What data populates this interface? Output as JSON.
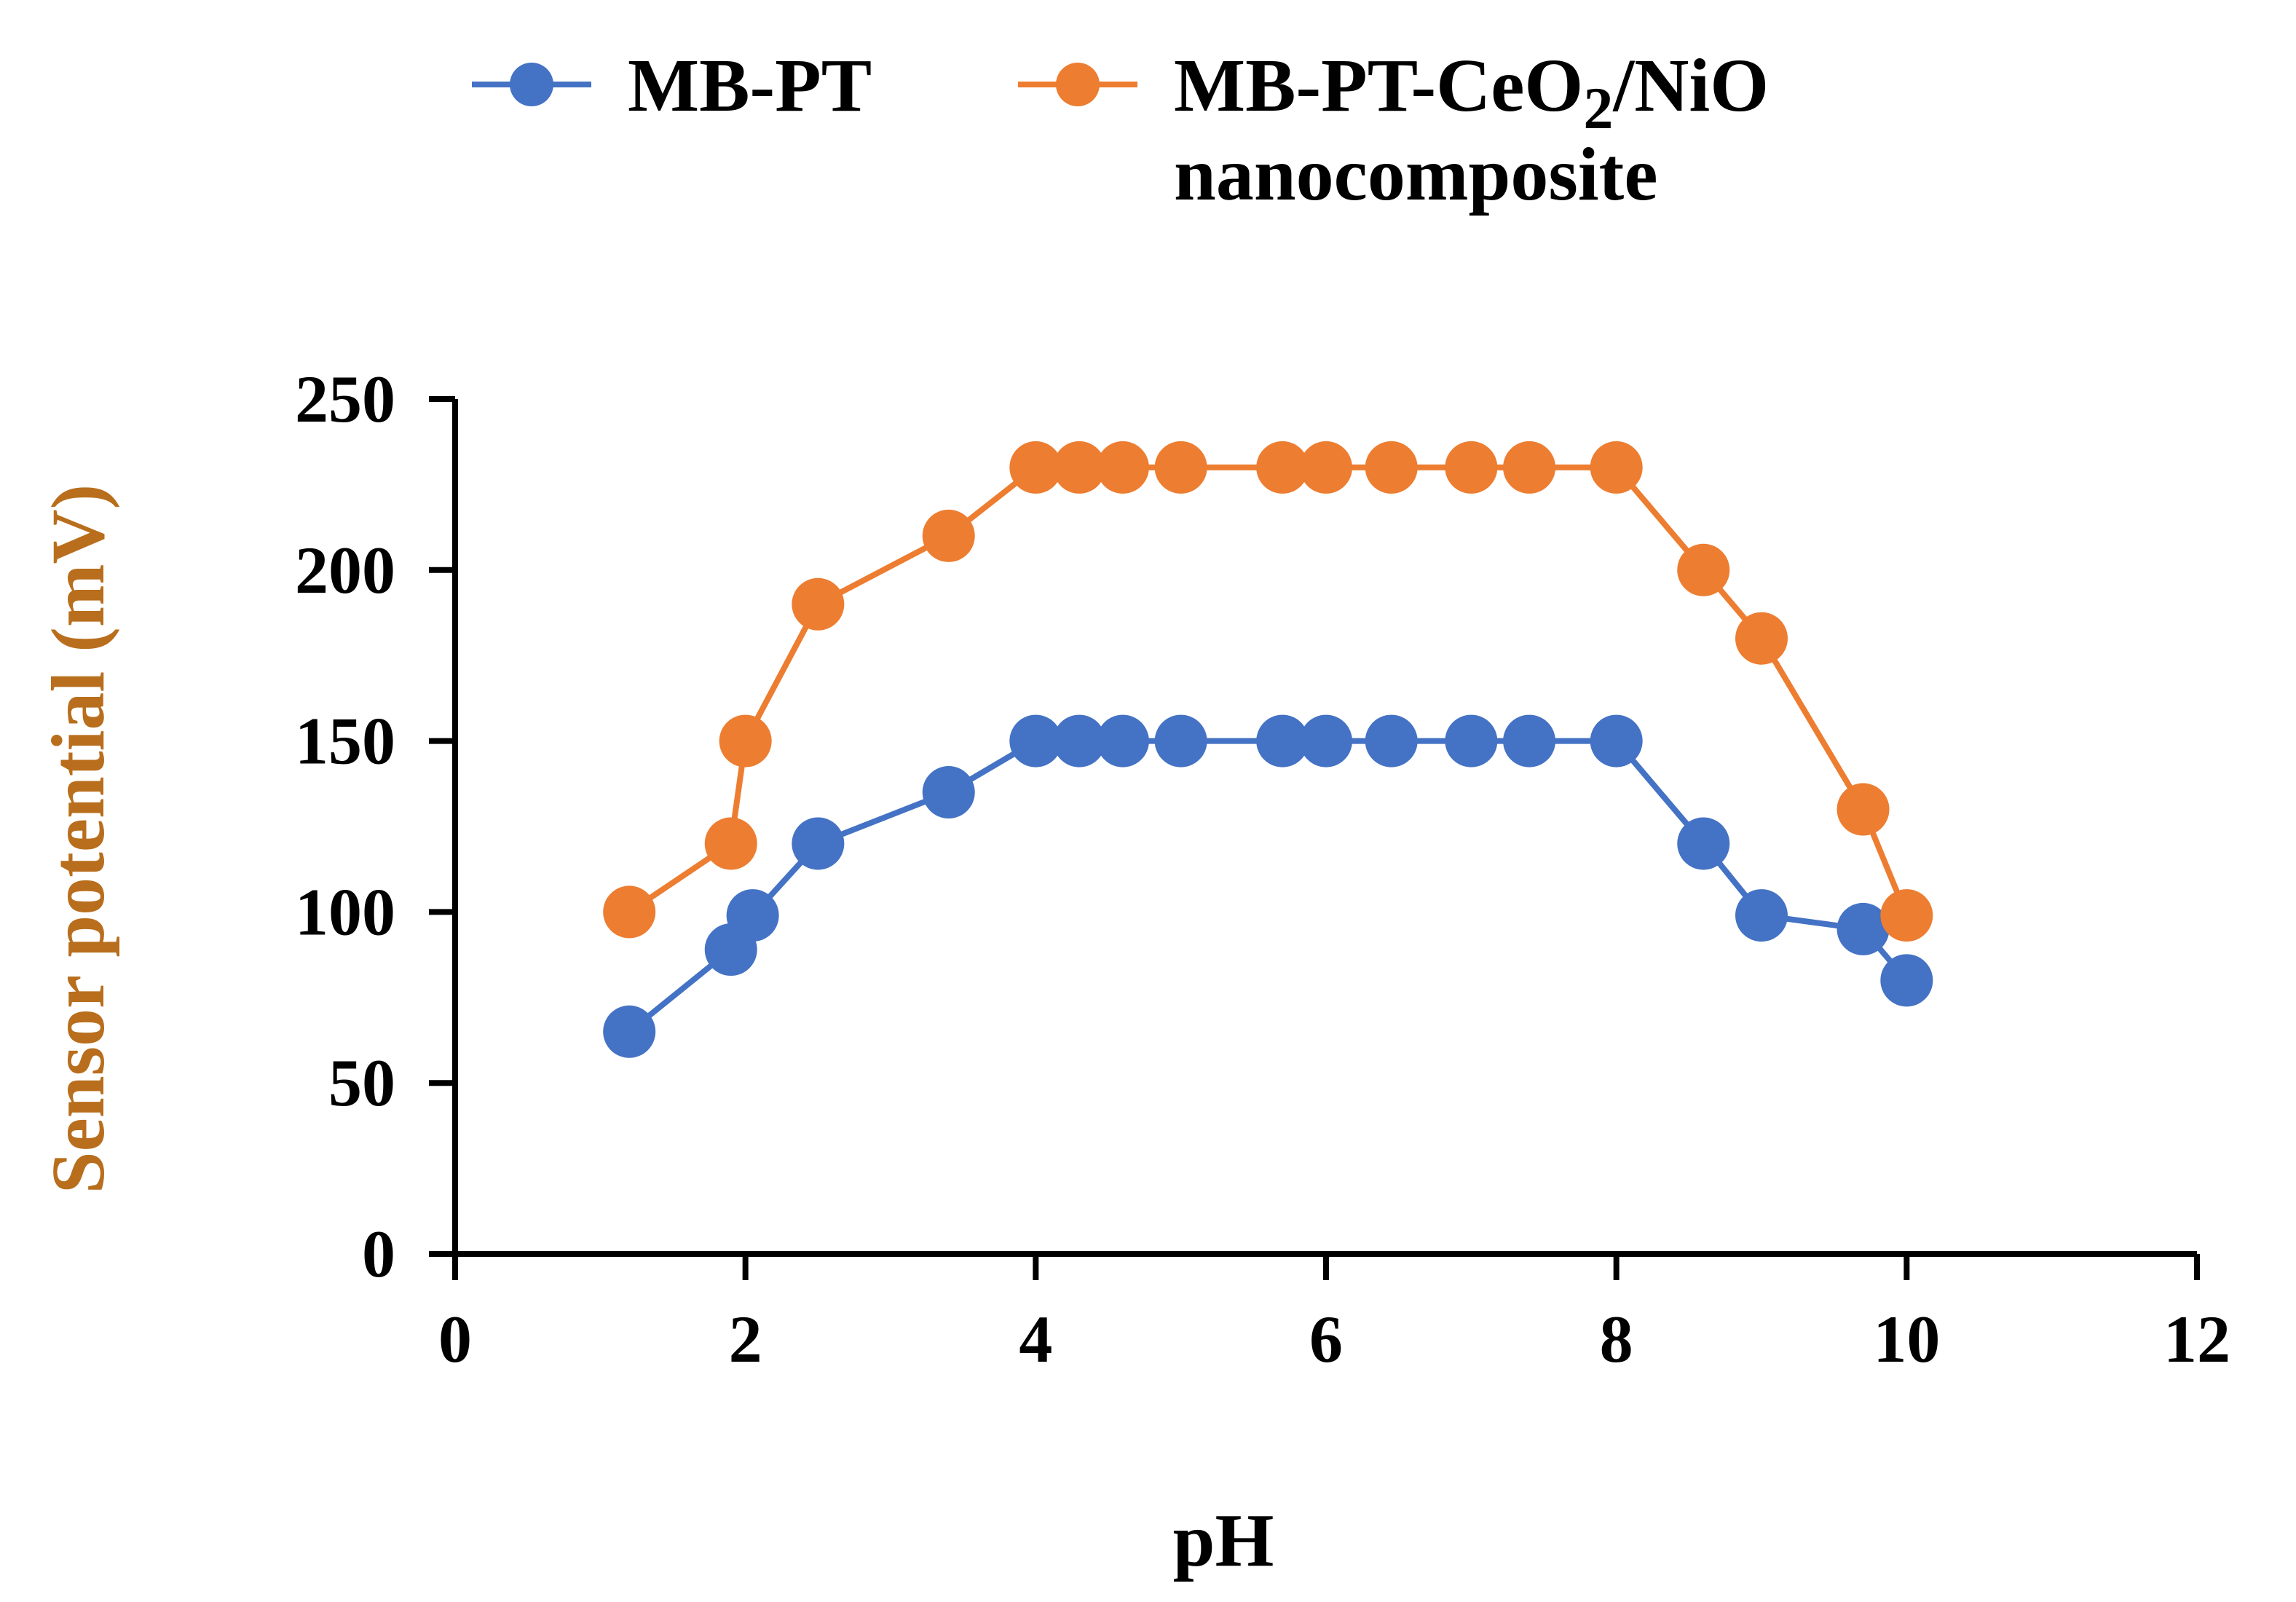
{
  "chart_data": {
    "type": "line",
    "title": "",
    "xlabel": "pH",
    "ylabel": "Sensor potential (mV)",
    "xlim": [
      0,
      12
    ],
    "ylim": [
      0,
      250
    ],
    "xticks": [
      0,
      2,
      4,
      6,
      8,
      10,
      12
    ],
    "yticks": [
      0,
      50,
      100,
      150,
      200,
      250
    ],
    "grid": false,
    "legend_position": "top",
    "colors": {
      "axis": "#000000",
      "ylabel": "#b86e1c",
      "xlabel": "#000000"
    },
    "series": [
      {
        "name": "MB-PT",
        "legend_label": "MB-PT",
        "color": "#4472c4",
        "x": [
          1.2,
          1.9,
          2.05,
          2.5,
          3.4,
          4.0,
          4.3,
          4.6,
          5.0,
          5.7,
          6.0,
          6.45,
          7.0,
          7.4,
          8.0,
          8.6,
          9.0,
          9.7,
          10.0
        ],
        "y": [
          65,
          89,
          99,
          120,
          135,
          150,
          150,
          150,
          150,
          150,
          150,
          150,
          150,
          150,
          150,
          120,
          99,
          95,
          80
        ]
      },
      {
        "name": "MB-PT-CeO2/NiO nanocomposite",
        "legend_label_line1_a": "MB-PT-CeO",
        "legend_label_line1_sub": "2",
        "legend_label_line1_b": "/NiO",
        "legend_label_line2": "nanocomposite",
        "color": "#ed7d31",
        "x": [
          1.2,
          1.9,
          2.0,
          2.5,
          3.4,
          4.0,
          4.3,
          4.6,
          5.0,
          5.7,
          6.0,
          6.45,
          7.0,
          7.4,
          8.0,
          8.6,
          9.0,
          9.7,
          10.0
        ],
        "y": [
          100,
          120,
          150,
          190,
          210,
          230,
          230,
          230,
          230,
          230,
          230,
          230,
          230,
          230,
          230,
          200,
          180,
          130,
          99
        ]
      }
    ]
  }
}
